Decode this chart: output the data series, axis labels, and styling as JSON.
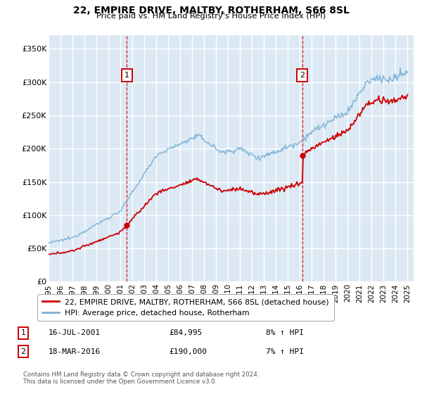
{
  "title": "22, EMPIRE DRIVE, MALTBY, ROTHERHAM, S66 8SL",
  "subtitle": "Price paid vs. HM Land Registry's House Price Index (HPI)",
  "legend_line1": "22, EMPIRE DRIVE, MALTBY, ROTHERHAM, S66 8SL (detached house)",
  "legend_line2": "HPI: Average price, detached house, Rotherham",
  "ann1_label": "1",
  "ann1_date": "16-JUL-2001",
  "ann1_price": "£84,995",
  "ann1_hpi": "8% ↑ HPI",
  "ann1_year": 2001.54,
  "ann1_value": 84995,
  "ann2_label": "2",
  "ann2_date": "18-MAR-2016",
  "ann2_price": "£190,000",
  "ann2_hpi": "7% ↑ HPI",
  "ann2_year": 2016.21,
  "ann2_value": 190000,
  "footer": "Contains HM Land Registry data © Crown copyright and database right 2024.\nThis data is licensed under the Open Government Licence v3.0.",
  "xlim": [
    1995,
    2025.5
  ],
  "ylim": [
    0,
    370000
  ],
  "yticks": [
    0,
    50000,
    100000,
    150000,
    200000,
    250000,
    300000,
    350000
  ],
  "ytick_labels": [
    "£0",
    "£50K",
    "£100K",
    "£150K",
    "£200K",
    "£250K",
    "£300K",
    "£350K"
  ],
  "xticks": [
    1995,
    1996,
    1997,
    1998,
    1999,
    2000,
    2001,
    2002,
    2003,
    2004,
    2005,
    2006,
    2007,
    2008,
    2009,
    2010,
    2011,
    2012,
    2013,
    2014,
    2015,
    2016,
    2017,
    2018,
    2019,
    2020,
    2021,
    2022,
    2023,
    2024,
    2025
  ],
  "bg_color": "#dce9f5",
  "grid_color": "#ffffff",
  "red_color": "#cc0000",
  "blue_color": "#7ab0d4",
  "ann_box_color": "#cc0000"
}
